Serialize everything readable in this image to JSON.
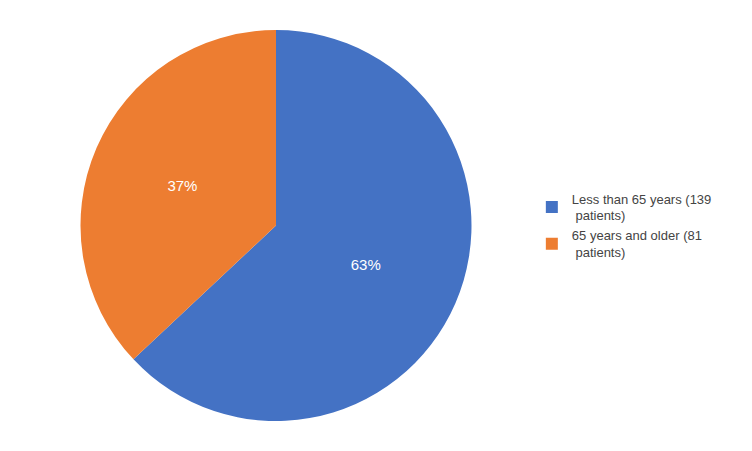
{
  "chart_data": {
    "type": "pie",
    "categories": [
      "Less than 65 years (139\n patients)",
      "65 years and older (81\n patients)"
    ],
    "values": [
      63,
      37
    ],
    "value_labels": [
      "63%",
      "37%"
    ],
    "colors": [
      "#4472C4",
      "#ED7D31"
    ],
    "data_labels": true,
    "legend": "right"
  }
}
